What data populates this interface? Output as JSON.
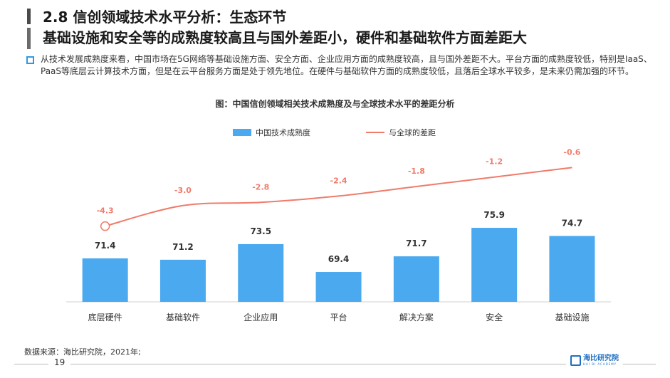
{
  "header": {
    "title_line1": "2.8 信创领域技术水平分析：生态环节",
    "title_line2": "基础设施和安全等的成熟度较高且与国外差距小，硬件和基础软件方面差距大"
  },
  "summary": {
    "text": "从技术发展成熟度来看，中国市场在5G网络等基础设施方面、安全方面、企业应用方面的成熟度较高，且与国外差距不大。平台方面的成熟度较低，特别是IaaS、 PaaS等底层云计算技术方面，但是在云平台服务方面是处于领先地位。在硬件与基础软件方面的成熟度较低，且落后全球水平较多，是未来仍需加强的环节。"
  },
  "chart_data": {
    "type": "bar",
    "title": "图：中国信创领域相关技术成熟度及与全球技术水平的差距分析",
    "categories": [
      "底层硬件",
      "基础软件",
      "企业应用",
      "平台",
      "解决方案",
      "安全",
      "基础设施"
    ],
    "series": [
      {
        "name": "中国技术成熟度",
        "type": "bar",
        "color": "#4aa9ef",
        "values": [
          71.4,
          71.2,
          73.5,
          69.4,
          71.7,
          75.9,
          74.7
        ]
      },
      {
        "name": "与全球的差距",
        "type": "line",
        "color": "#f07b6b",
        "values": [
          -4.3,
          -3.0,
          -2.8,
          -2.4,
          -1.8,
          -1.2,
          -0.6
        ]
      }
    ],
    "bar_axis_range": [
      65,
      78
    ],
    "line_axis_range": [
      -8,
      0
    ],
    "grid": false,
    "legend_position": "top"
  },
  "footer": {
    "source": "数据来源：海比研究院，2021年;",
    "page_number": "19",
    "logo_text": "海比研究院",
    "logo_subtext": "HAI BI ACADEMY"
  }
}
